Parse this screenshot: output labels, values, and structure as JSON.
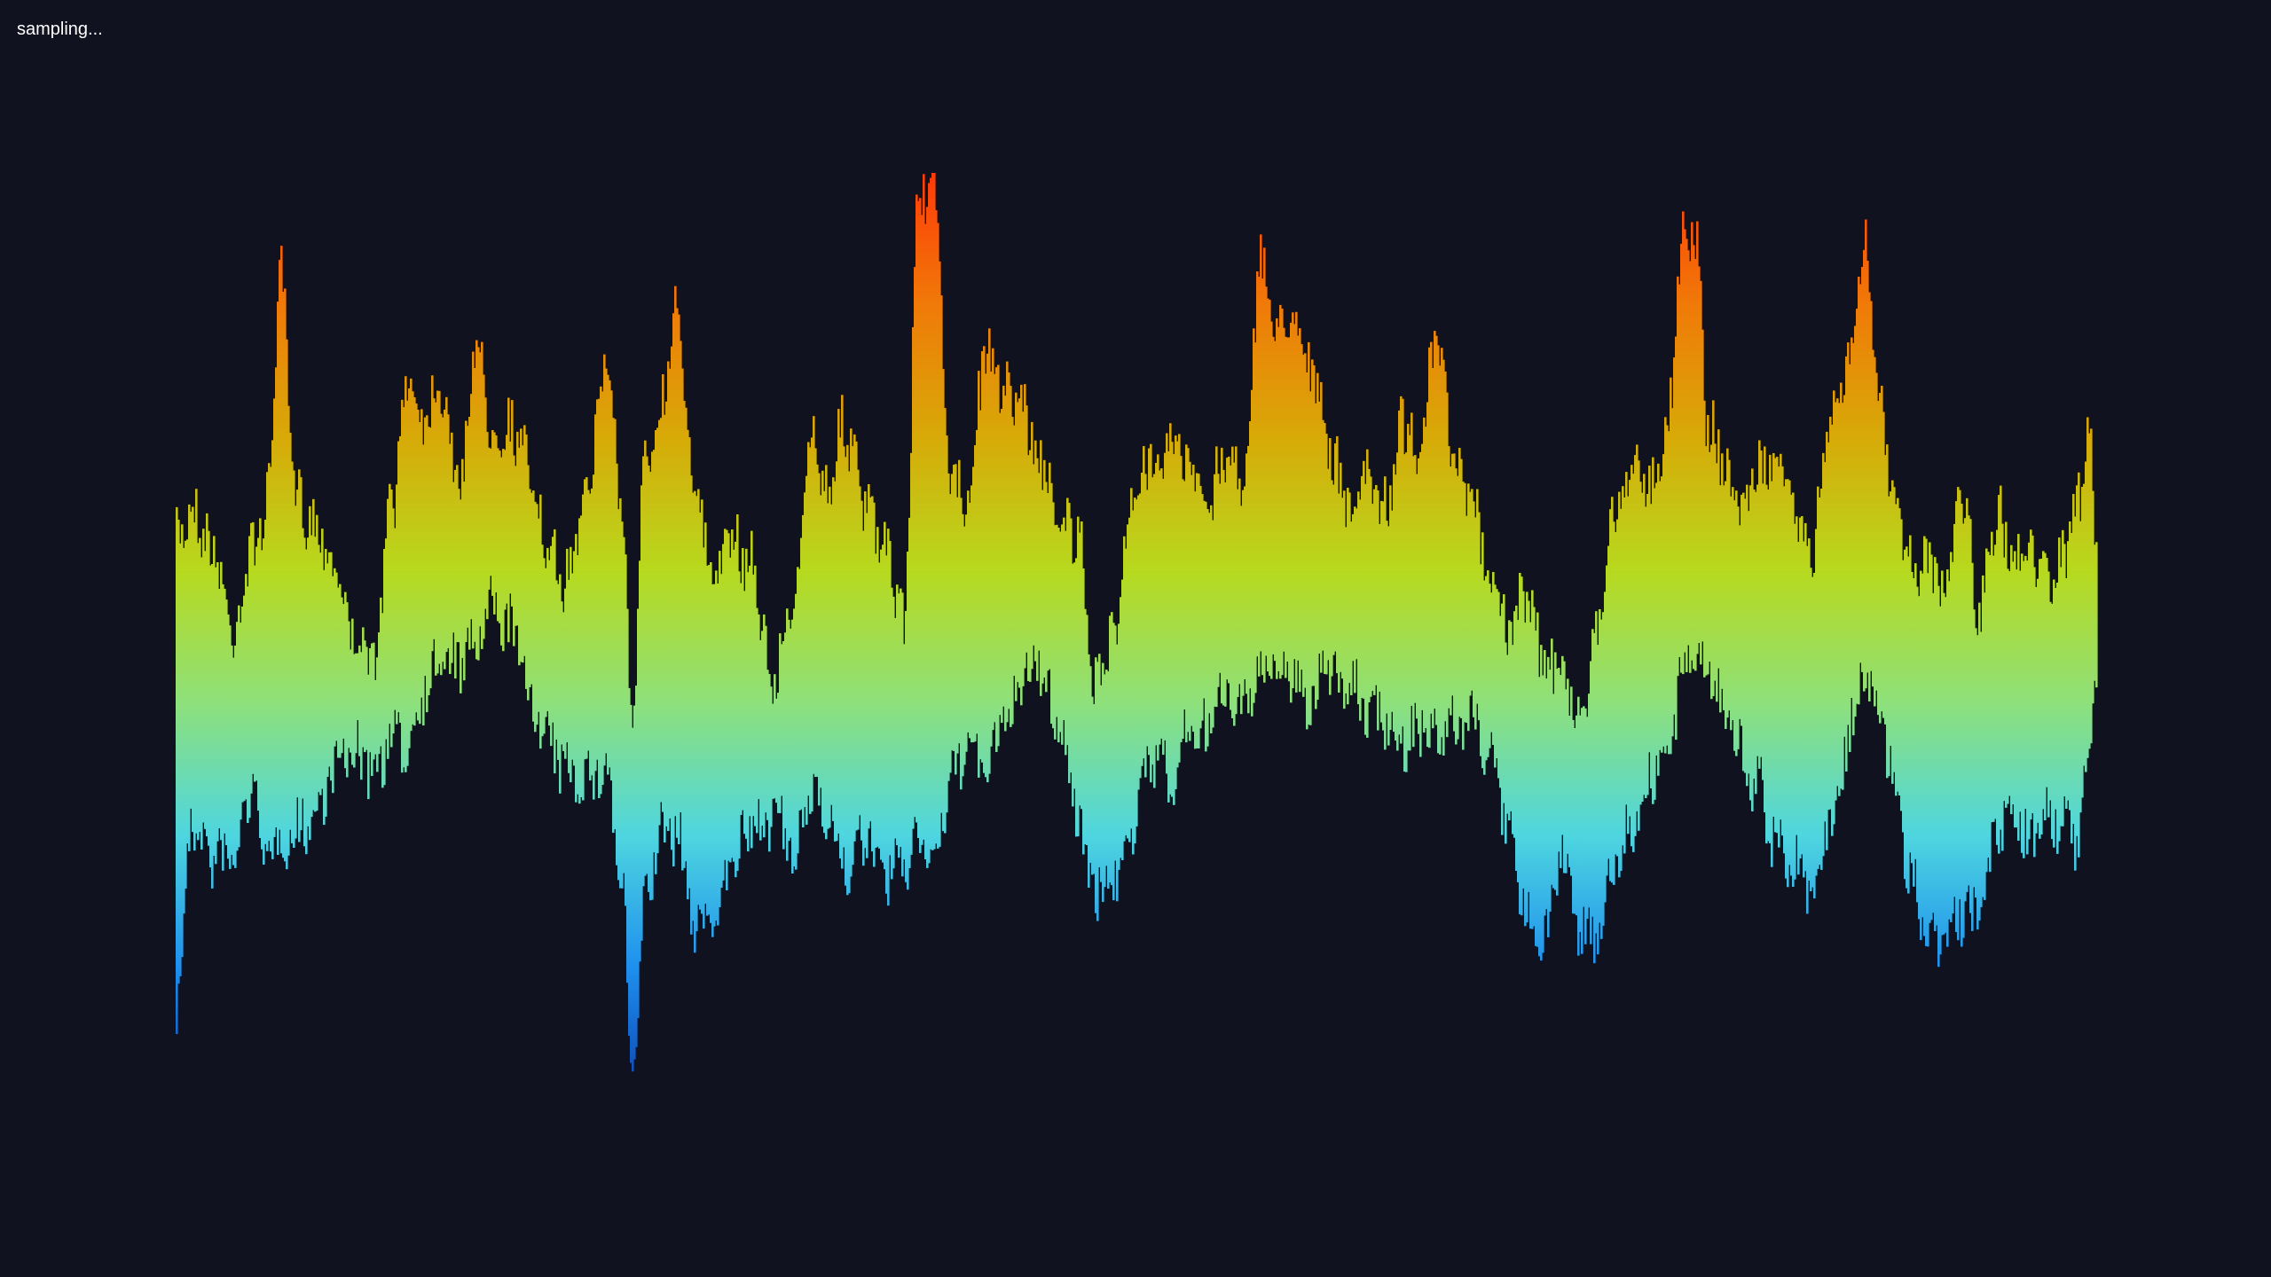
{
  "status": {
    "text": "sampling..."
  },
  "theme": {
    "background": "#111220",
    "status_text_color": "#ffffff",
    "gradient_stops": [
      "#0b3fae",
      "#1e90ee",
      "#4fd6df",
      "#8ee07a",
      "#b7d91e",
      "#d7aa08",
      "#f07a08",
      "#ff3a08"
    ]
  },
  "waveform": {
    "style": "vertical-bars",
    "color_by": "amplitude"
  }
}
